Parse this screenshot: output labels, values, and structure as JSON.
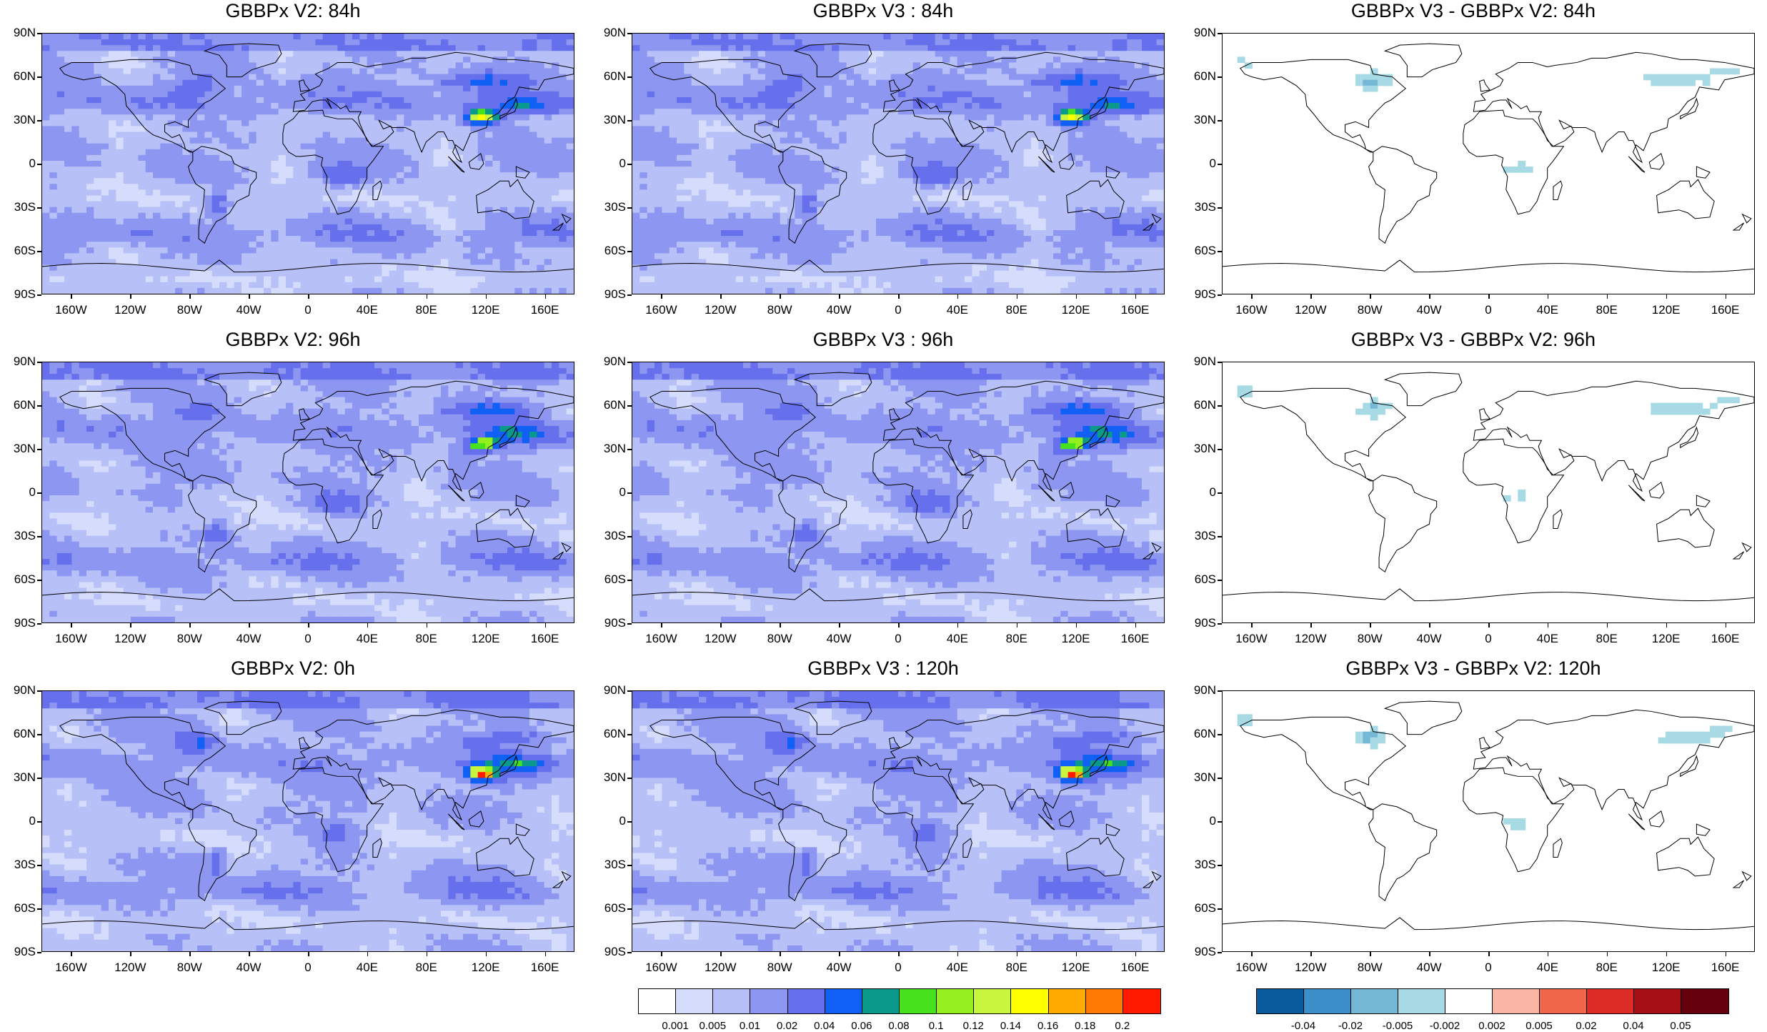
{
  "panels": [
    {
      "id": "v2_84",
      "title": "GBBPx V2: 84h",
      "kind": "aod",
      "seed": 1
    },
    {
      "id": "v3_84",
      "title": "GBBPx V3 : 84h",
      "kind": "aod",
      "seed": 1
    },
    {
      "id": "diff_84",
      "title": "GBBPx V3 - GBBPx V2: 84h",
      "kind": "diff",
      "seed": 1
    },
    {
      "id": "v2_96",
      "title": "GBBPx V2: 96h",
      "kind": "aod",
      "seed": 2
    },
    {
      "id": "v3_96",
      "title": "GBBPx V3 : 96h",
      "kind": "aod",
      "seed": 2
    },
    {
      "id": "diff_96",
      "title": "GBBPx V3 - GBBPx V2: 96h",
      "kind": "diff",
      "seed": 2
    },
    {
      "id": "v2_0",
      "title": "GBBPx V2: 0h",
      "kind": "aod",
      "seed": 3
    },
    {
      "id": "v3_120",
      "title": "GBBPx V3 : 120h",
      "kind": "aod",
      "seed": 3
    },
    {
      "id": "diff_120",
      "title": "GBBPx V3 - GBBPx V2: 120h",
      "kind": "diff",
      "seed": 3
    }
  ],
  "axes": {
    "lat_labels": [
      "90N",
      "60N",
      "30N",
      "0",
      "30S",
      "60S",
      "90S"
    ],
    "lon_labels": [
      "160W",
      "120W",
      "80W",
      "40W",
      "0",
      "40E",
      "80E",
      "120E",
      "160E"
    ],
    "lon_values": [
      -160,
      -120,
      -80,
      -40,
      0,
      40,
      80,
      120,
      160
    ],
    "lat_values": [
      90,
      60,
      30,
      0,
      -30,
      -60,
      -90
    ]
  },
  "colorbar_aod": {
    "labels": [
      "0.001",
      "0.005",
      "0.01",
      "0.02",
      "0.04",
      "0.06",
      "0.08",
      "0.1",
      "0.12",
      "0.14",
      "0.16",
      "0.18",
      "0.2"
    ],
    "colors": [
      "#ffffff",
      "#d6dcfb",
      "#b7c1f8",
      "#8d96f0",
      "#6770ec",
      "#1060f5",
      "#0a9a8c",
      "#47e21d",
      "#93ef1e",
      "#c8f53d",
      "#ffff00",
      "#ffaa00",
      "#ff7a00",
      "#ff1a00"
    ]
  },
  "colorbar_diff": {
    "labels": [
      "-0.04",
      "-0.02",
      "-0.005",
      "-0.002",
      "0.002",
      "0.005",
      "0.02",
      "0.04",
      "0.05"
    ],
    "colors": [
      "#0a5c9c",
      "#3a8fcb",
      "#74b8d6",
      "#a8dae6",
      "#ffffff",
      "#f9b4a4",
      "#f0664a",
      "#de2d26",
      "#a50f15",
      "#67000d"
    ]
  }
}
